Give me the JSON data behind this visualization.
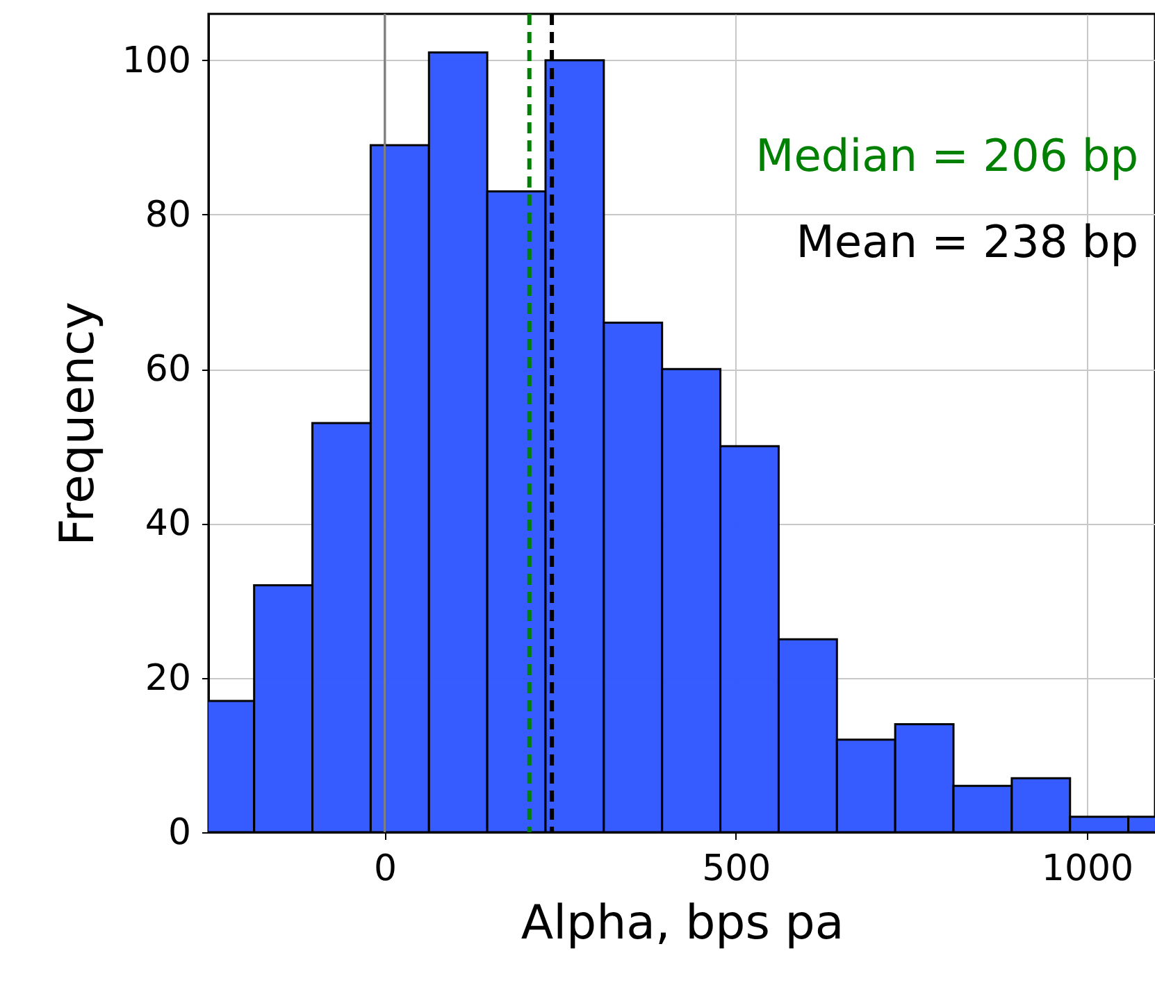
{
  "chart_data": {
    "type": "histogram",
    "xlabel": "Alpha, bps pa",
    "ylabel": "Frequency",
    "bins": [
      -269,
      -186,
      -103,
      -20,
      63,
      146,
      229,
      312,
      395,
      478,
      561,
      644,
      727,
      810,
      893,
      976,
      1059,
      1142
    ],
    "values": [
      17,
      32,
      53,
      89,
      101,
      83,
      100,
      66,
      60,
      50,
      25,
      12,
      14,
      6,
      7,
      2,
      2
    ],
    "color": "#3358ff",
    "xlim": [
      -251,
      1097
    ],
    "xticks": [
      0,
      500,
      1000
    ],
    "ylim": [
      0,
      106
    ],
    "yticks": [
      0,
      20,
      40,
      60,
      80,
      100
    ],
    "grid": true,
    "ref_lines": [
      {
        "axis": "x",
        "value": 0,
        "label": null,
        "color": "#808080",
        "line_style": "solid"
      },
      {
        "axis": "x",
        "value": 206,
        "label": "Median = 206 bp",
        "color": "#008000",
        "line_style": "dashed"
      },
      {
        "axis": "x",
        "value": 238,
        "label": "Mean = 238 bp",
        "color": "#000000",
        "line_style": "dashed"
      }
    ]
  }
}
